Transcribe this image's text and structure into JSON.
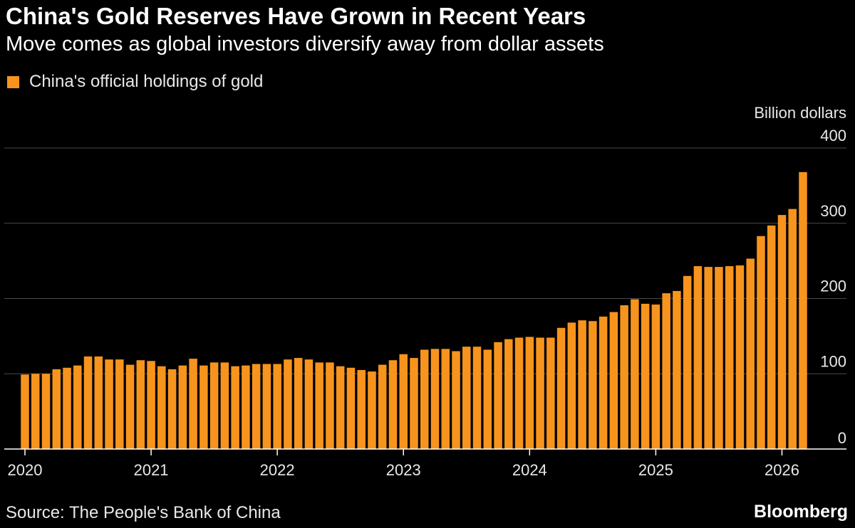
{
  "title": "China's Gold Reserves Have Grown in Recent Years",
  "subtitle": "Move comes as global investors diversify away from dollar assets",
  "legend": {
    "label": "China's official holdings of gold"
  },
  "footer": {
    "source": "Source: The People's Bank of China",
    "brand": "Bloomberg"
  },
  "colors": {
    "background": "#000000",
    "bar": "#f7941d",
    "grid": "#4a4a4a",
    "axis": "#ffffff",
    "text": "#e8e8e8"
  },
  "chart_data": {
    "type": "bar",
    "unit_label": "Billion dollars",
    "x_tick_labels": [
      "2020",
      "2021",
      "2022",
      "2023",
      "2024",
      "2025",
      "2026"
    ],
    "y_ticks": [
      0,
      100,
      200,
      300,
      400
    ],
    "ylim": [
      0,
      400
    ],
    "grid": true,
    "legend_position": "top-left",
    "series": [
      {
        "name": "China's official holdings of gold",
        "start": "2020-01",
        "frequency": "monthly",
        "values": [
          99,
          100,
          100,
          106,
          108,
          111,
          123,
          123,
          119,
          119,
          112,
          118,
          117,
          110,
          106,
          111,
          120,
          111,
          115,
          115,
          110,
          111,
          113,
          113,
          113,
          119,
          121,
          119,
          115,
          115,
          110,
          108,
          105,
          103,
          112,
          118,
          126,
          121,
          132,
          133,
          133,
          130,
          136,
          136,
          132,
          142,
          146,
          148,
          149,
          148,
          148,
          161,
          168,
          171,
          170,
          176,
          182,
          191,
          199,
          193,
          192,
          207,
          210,
          230,
          243,
          242,
          242,
          243,
          244,
          253,
          283,
          297,
          311,
          319,
          368
        ]
      }
    ]
  }
}
